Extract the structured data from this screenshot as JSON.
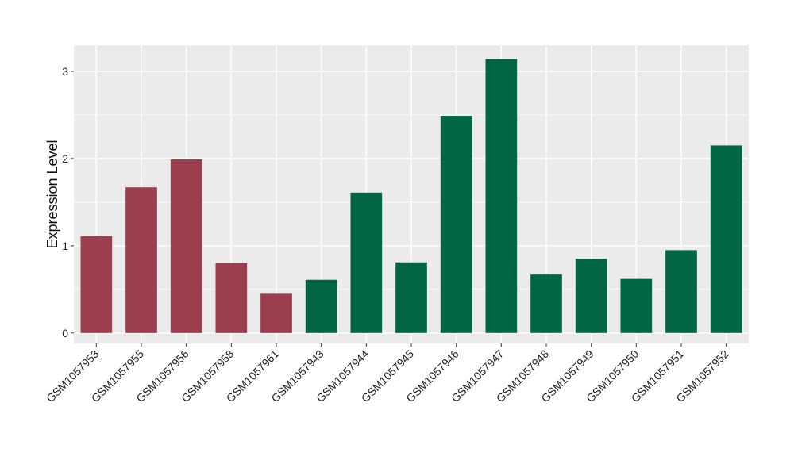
{
  "chart_data": {
    "type": "bar",
    "title": "",
    "xlabel": "",
    "ylabel": "Expression Level",
    "ylim": [
      -0.12,
      3.3
    ],
    "yticks": [
      0,
      1,
      2,
      3
    ],
    "grid": true,
    "background_color": "#ebebeb",
    "gridline_color": "#ffffff",
    "colors": {
      "group_a": "#9b3f4f",
      "group_b": "#006644"
    },
    "categories": [
      "GSM1057953",
      "GSM1057955",
      "GSM1057956",
      "GSM1057958",
      "GSM1057961",
      "GSM1057943",
      "GSM1057944",
      "GSM1057945",
      "GSM1057946",
      "GSM1057947",
      "GSM1057948",
      "GSM1057949",
      "GSM1057950",
      "GSM1057951",
      "GSM1057952"
    ],
    "values": [
      1.11,
      1.67,
      1.99,
      0.8,
      0.45,
      0.61,
      1.61,
      0.81,
      2.49,
      3.14,
      0.67,
      0.85,
      0.62,
      0.95,
      2.15
    ],
    "bar_groups": [
      "group_a",
      "group_a",
      "group_a",
      "group_a",
      "group_a",
      "group_b",
      "group_b",
      "group_b",
      "group_b",
      "group_b",
      "group_b",
      "group_b",
      "group_b",
      "group_b",
      "group_b"
    ]
  }
}
